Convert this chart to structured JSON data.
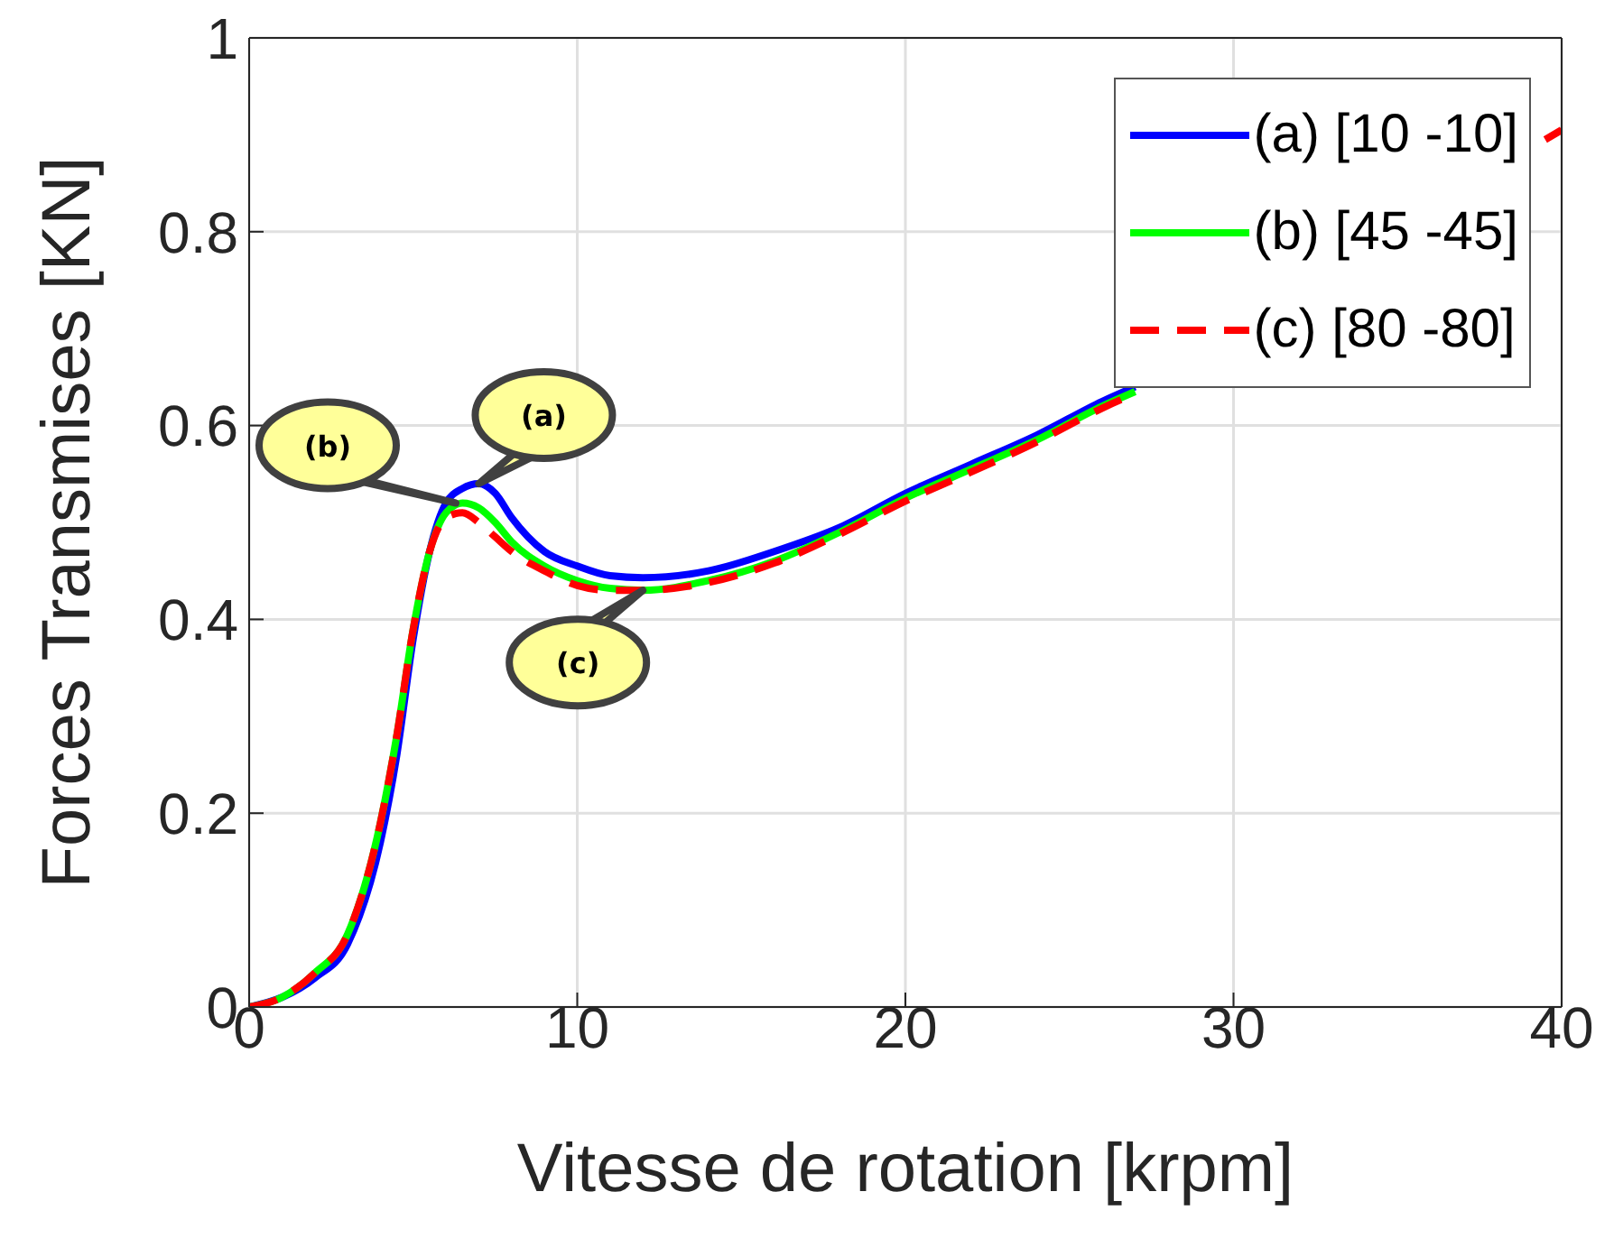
{
  "chart_data": {
    "type": "line",
    "xlabel": "Vitesse de rotation [krpm]",
    "ylabel": "Forces Transmises [KN]",
    "x": [
      0,
      1,
      2,
      3,
      4,
      4.5,
      5,
      5.5,
      6,
      6.5,
      7,
      7.5,
      8,
      9,
      10,
      11,
      12,
      14,
      16,
      18,
      20,
      22,
      24,
      26,
      27,
      28,
      30,
      32,
      34,
      36,
      38,
      39.5,
      40
    ],
    "series": [
      {
        "name": "(a) [10 -10]",
        "color": "#0000ff",
        "line_style": "solid",
        "values": [
          0,
          0.01,
          0.03,
          0.065,
          0.17,
          0.26,
          0.38,
          0.47,
          0.52,
          0.535,
          0.54,
          0.53,
          0.505,
          0.47,
          0.455,
          0.445,
          0.443,
          0.45,
          0.47,
          0.495,
          0.53,
          0.56,
          0.59,
          0.625,
          0.64,
          null,
          null,
          null,
          null,
          null,
          null,
          null,
          null
        ]
      },
      {
        "name": "(b) [45 -45]",
        "color": "#00ff00",
        "line_style": "solid",
        "values": [
          0,
          0.01,
          0.035,
          0.075,
          0.19,
          0.28,
          0.39,
          0.47,
          0.51,
          0.52,
          0.515,
          0.5,
          0.48,
          0.455,
          0.44,
          0.432,
          0.43,
          0.44,
          0.46,
          0.49,
          0.525,
          0.555,
          0.585,
          0.62,
          0.635,
          null,
          null,
          null,
          null,
          null,
          null,
          null,
          null
        ]
      },
      {
        "name": "(c) [80 -80]",
        "color": "#ff0000",
        "line_style": "dashed",
        "values": [
          0,
          0.01,
          0.035,
          0.075,
          0.19,
          0.28,
          0.39,
          0.47,
          0.505,
          0.51,
          0.5,
          0.485,
          0.47,
          0.45,
          0.435,
          0.43,
          0.43,
          0.438,
          0.458,
          0.488,
          0.522,
          0.552,
          0.583,
          0.618,
          0.633,
          null,
          null,
          null,
          null,
          null,
          null,
          0.895,
          0.905
        ]
      }
    ],
    "annotations": [
      {
        "text": "(a)",
        "x": 7,
        "y": 0.54
      },
      {
        "text": "(b)",
        "x": 6.3,
        "y": 0.52
      },
      {
        "text": "(c)",
        "x": 12,
        "y": 0.43
      }
    ],
    "xlim": [
      0,
      40
    ],
    "xticks": [
      0,
      10,
      20,
      30,
      40
    ],
    "ylim": [
      0,
      1
    ],
    "yticks": [
      0,
      0.2,
      0.4,
      0.6,
      0.8,
      1
    ],
    "grid": true,
    "legend": "top right",
    "marker": "none"
  }
}
